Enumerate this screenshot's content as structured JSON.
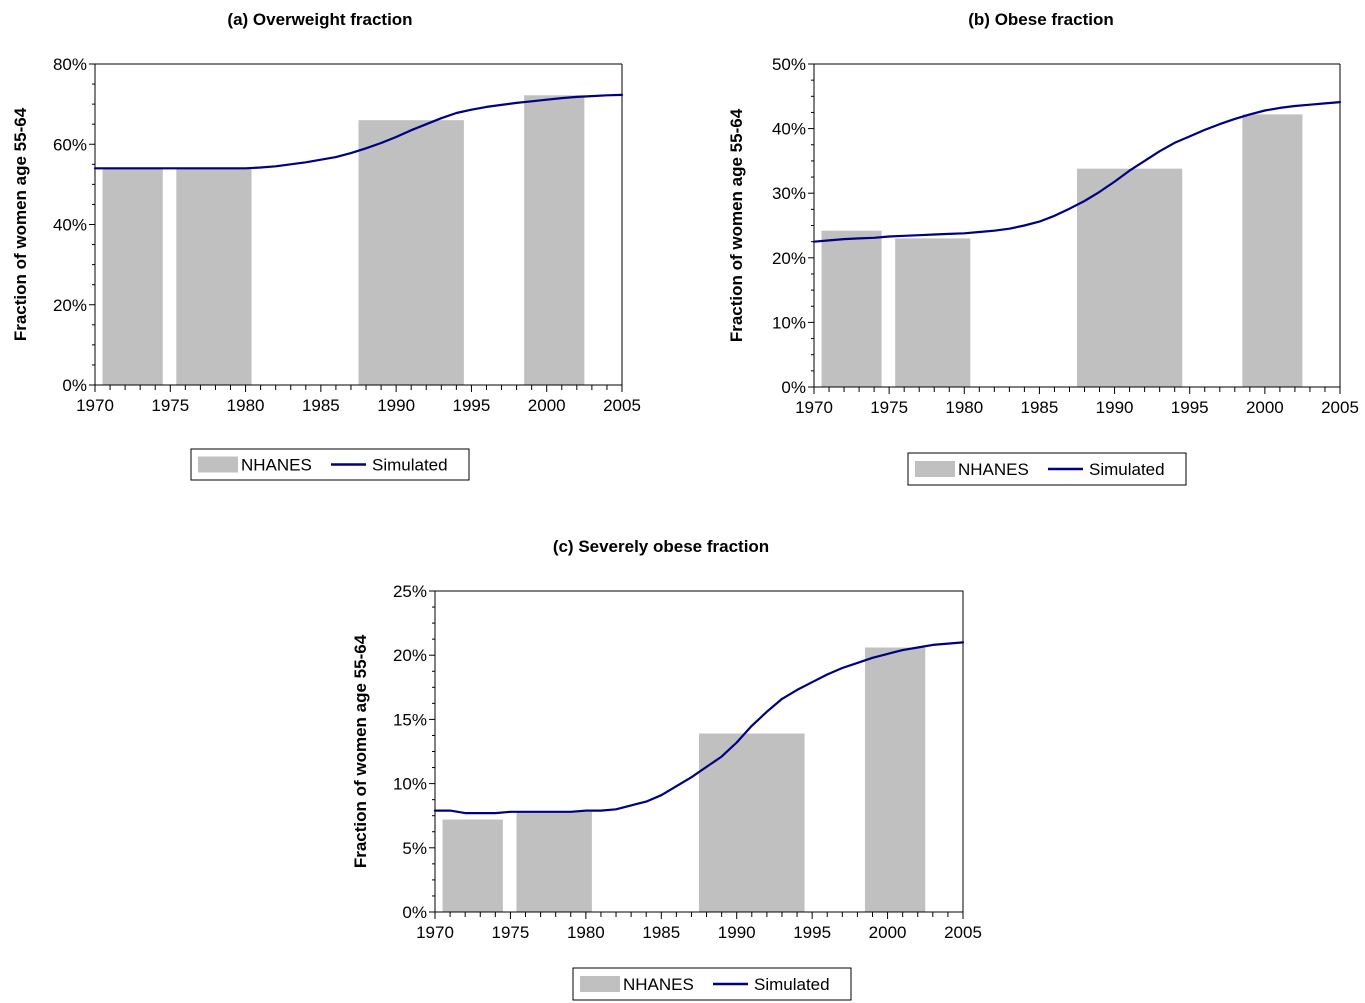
{
  "colors": {
    "bar": "#c0c0c0",
    "line": "#000080",
    "axis": "#000000"
  },
  "chart_data": [
    {
      "type": "bar",
      "title": "(a) Overweight fraction",
      "ylabel": "Fraction of women age 55-64",
      "xlabel": "",
      "xlim": [
        1970,
        2005
      ],
      "ylim": [
        0,
        80
      ],
      "x_ticks": [
        "1970",
        "1975",
        "1980",
        "1985",
        "1990",
        "1995",
        "2000",
        "2005"
      ],
      "y_ticks": [
        "0%",
        "20%",
        "40%",
        "60%",
        "80%"
      ],
      "grid": false,
      "legend": "bottom",
      "legend_entries": [
        "NHANES",
        "Simulated"
      ],
      "bars": [
        {
          "start": 1970.5,
          "end": 1974.5,
          "value": 54.2
        },
        {
          "start": 1975.4,
          "end": 1980.4,
          "value": 54.0
        },
        {
          "start": 1987.5,
          "end": 1994.5,
          "value": 66.0
        },
        {
          "start": 1998.5,
          "end": 2002.5,
          "value": 72.2
        }
      ],
      "line": {
        "x": [
          1970,
          1975,
          1980,
          1981,
          1982,
          1984,
          1986,
          1987,
          1988,
          1989,
          1990,
          1991,
          1992,
          1993,
          1994,
          1995,
          1996,
          1997,
          1998,
          1999,
          2000,
          2001,
          2002,
          2003,
          2004,
          2005
        ],
        "y": [
          54,
          54,
          54,
          54.2,
          54.5,
          55.5,
          56.8,
          57.8,
          59.0,
          60.3,
          61.8,
          63.5,
          65.0,
          66.5,
          67.8,
          68.6,
          69.3,
          69.8,
          70.3,
          70.7,
          71.1,
          71.5,
          71.8,
          72.0,
          72.2,
          72.3
        ]
      }
    },
    {
      "type": "bar",
      "title": "(b) Obese fraction",
      "ylabel": "Fraction of women age 55-64",
      "xlabel": "",
      "xlim": [
        1970,
        2005
      ],
      "ylim": [
        0,
        50
      ],
      "x_ticks": [
        "1970",
        "1975",
        "1980",
        "1985",
        "1990",
        "1995",
        "2000",
        "2005"
      ],
      "y_ticks": [
        "0%",
        "10%",
        "20%",
        "30%",
        "40%",
        "50%"
      ],
      "grid": false,
      "legend": "bottom",
      "legend_entries": [
        "NHANES",
        "Simulated"
      ],
      "bars": [
        {
          "start": 1970.5,
          "end": 1974.5,
          "value": 24.2
        },
        {
          "start": 1975.4,
          "end": 1980.4,
          "value": 23.0
        },
        {
          "start": 1987.5,
          "end": 1994.5,
          "value": 33.8
        },
        {
          "start": 1998.5,
          "end": 2002.5,
          "value": 42.2
        }
      ],
      "line": {
        "x": [
          1970,
          1971,
          1972,
          1973,
          1974,
          1975,
          1976,
          1977,
          1978,
          1979,
          1980,
          1981,
          1982,
          1983,
          1984,
          1985,
          1986,
          1987,
          1988,
          1989,
          1990,
          1991,
          1992,
          1993,
          1994,
          1995,
          1996,
          1997,
          1998,
          1999,
          2000,
          2001,
          2002,
          2003,
          2004,
          2005
        ],
        "y": [
          22.5,
          22.7,
          22.9,
          23.0,
          23.1,
          23.3,
          23.4,
          23.5,
          23.6,
          23.7,
          23.8,
          24.0,
          24.2,
          24.5,
          25.0,
          25.6,
          26.5,
          27.6,
          28.8,
          30.2,
          31.8,
          33.5,
          35.0,
          36.5,
          37.8,
          38.8,
          39.8,
          40.7,
          41.5,
          42.2,
          42.8,
          43.2,
          43.5,
          43.7,
          43.9,
          44.1
        ]
      }
    },
    {
      "type": "bar",
      "title": "(c) Severely obese fraction",
      "ylabel": "Fraction of women age 55-64",
      "xlabel": "",
      "xlim": [
        1970,
        2005
      ],
      "ylim": [
        0,
        25
      ],
      "x_ticks": [
        "1970",
        "1975",
        "1980",
        "1985",
        "1990",
        "1995",
        "2000",
        "2005"
      ],
      "y_ticks": [
        "0%",
        "5%",
        "10%",
        "15%",
        "20%",
        "25%"
      ],
      "grid": false,
      "legend": "bottom",
      "legend_entries": [
        "NHANES",
        "Simulated"
      ],
      "bars": [
        {
          "start": 1970.5,
          "end": 1974.5,
          "value": 7.2
        },
        {
          "start": 1975.4,
          "end": 1980.4,
          "value": 7.8
        },
        {
          "start": 1987.5,
          "end": 1994.5,
          "value": 13.9
        },
        {
          "start": 1998.5,
          "end": 2002.5,
          "value": 20.6
        }
      ],
      "line": {
        "x": [
          1970,
          1971,
          1972,
          1973,
          1974,
          1975,
          1976,
          1977,
          1978,
          1979,
          1980,
          1981,
          1982,
          1983,
          1984,
          1985,
          1986,
          1987,
          1988,
          1989,
          1990,
          1991,
          1992,
          1993,
          1994,
          1995,
          1996,
          1997,
          1998,
          1999,
          2000,
          2001,
          2002,
          2003,
          2004,
          2005
        ],
        "y": [
          7.9,
          7.9,
          7.7,
          7.7,
          7.7,
          7.8,
          7.8,
          7.8,
          7.8,
          7.8,
          7.9,
          7.9,
          8.0,
          8.3,
          8.6,
          9.1,
          9.8,
          10.5,
          11.3,
          12.1,
          13.2,
          14.5,
          15.6,
          16.6,
          17.3,
          17.9,
          18.5,
          19.0,
          19.4,
          19.8,
          20.1,
          20.4,
          20.6,
          20.8,
          20.9,
          21.0
        ]
      }
    }
  ]
}
